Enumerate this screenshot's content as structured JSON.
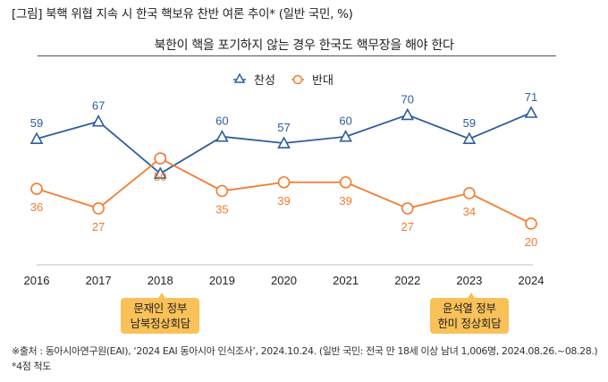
{
  "figure_title": "[그림] 북핵 위협 지속 시 한국 핵보유 찬반 여론 추이* (일반 국민, %)",
  "colors": {
    "agree": "#2F5C9E",
    "disagree": "#F47B30",
    "callout": "#F9C158",
    "axis": "#BFBFBF"
  },
  "chart_data": {
    "type": "line",
    "title": "북한이 핵을 포기하지 않는 경우 한국도 핵무장을 해야 한다",
    "xlabel": "",
    "ylabel": "",
    "categories": [
      "2016",
      "2017",
      "2018",
      "2019",
      "2020",
      "2021",
      "2022",
      "2023",
      "2024"
    ],
    "series": [
      {
        "name": "찬성",
        "marker": "triangle",
        "values": [
          59,
          67,
          43,
          60,
          57,
          60,
          70,
          59,
          71
        ],
        "label_position": "above"
      },
      {
        "name": "반대",
        "marker": "circle",
        "values": [
          36,
          27,
          50,
          35,
          39,
          39,
          27,
          34,
          20
        ],
        "label_position": "below"
      }
    ],
    "legend_position": "top-center",
    "grid": false,
    "annotations": [
      {
        "category": "2018",
        "lines": [
          "문재인 정부",
          "남북정상회담"
        ]
      },
      {
        "category": "2023",
        "lines": [
          "윤석열 정부",
          "한미 정상회담"
        ]
      }
    ]
  },
  "footnotes": [
    "※출처 : 동아시아연구원(EAI), ‘2024 EAI 동아시아 인식조사’, 2024.10.24. (일반 국민: 전국 만 18세 이상 남녀 1,006명, 2024.08.26.~08.28.)",
    "*4점 척도"
  ]
}
